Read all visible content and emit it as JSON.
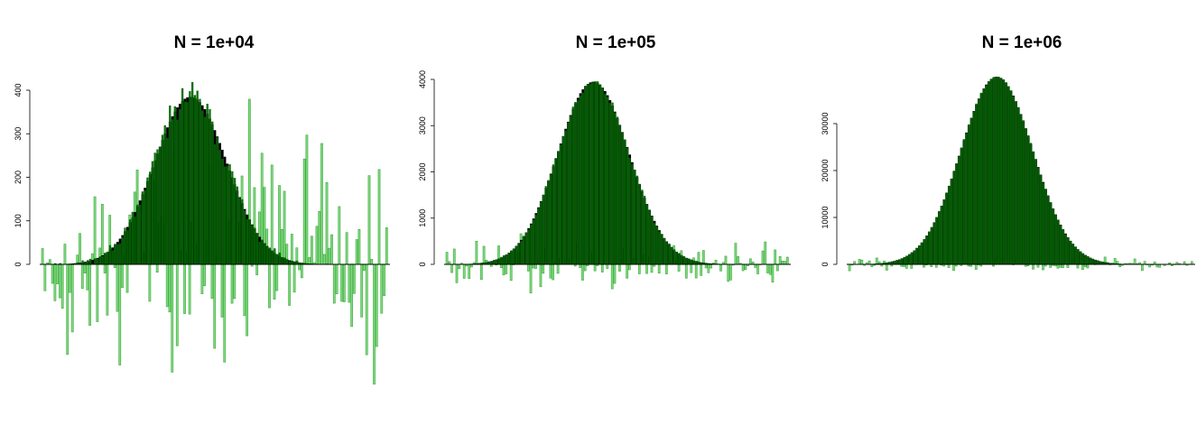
{
  "figure": {
    "colors": {
      "density": "#000000",
      "estimate_fill": "#006400",
      "diff_fill": "#7fdb7f",
      "diff_stroke": "#3fa83f",
      "axis": "#000000"
    }
  },
  "chart_data": [
    {
      "type": "bar",
      "title": "N = 1e+04",
      "xlabel": "",
      "ylabel": "",
      "yticks": [
        "0",
        "100",
        "200",
        "300",
        "400"
      ],
      "ylim": [
        -350,
        580
      ],
      "mean": 0,
      "sd": 1,
      "peak": 385,
      "noise": 230,
      "n_bins": 139,
      "seed": 11
    },
    {
      "type": "bar",
      "title": "N = 1e+05",
      "xlabel": "",
      "ylabel": "",
      "yticks": [
        "0",
        "1000",
        "2000",
        "3000",
        "4000"
      ],
      "ylim": [
        -1400,
        5300
      ],
      "mean": 0,
      "sd": 1,
      "peak": 3950,
      "noise": 550,
      "n_bins": 139,
      "seed": 23
    },
    {
      "type": "bar",
      "title": "N = 1e+06",
      "xlabel": "",
      "ylabel": "",
      "yticks": [
        "0",
        "10000",
        "20000",
        "30000"
      ],
      "ylim": [
        -5000,
        43000
      ],
      "mean": 0,
      "sd": 1,
      "peak": 40000,
      "noise": 1400,
      "n_bins": 139,
      "seed": 37
    }
  ]
}
